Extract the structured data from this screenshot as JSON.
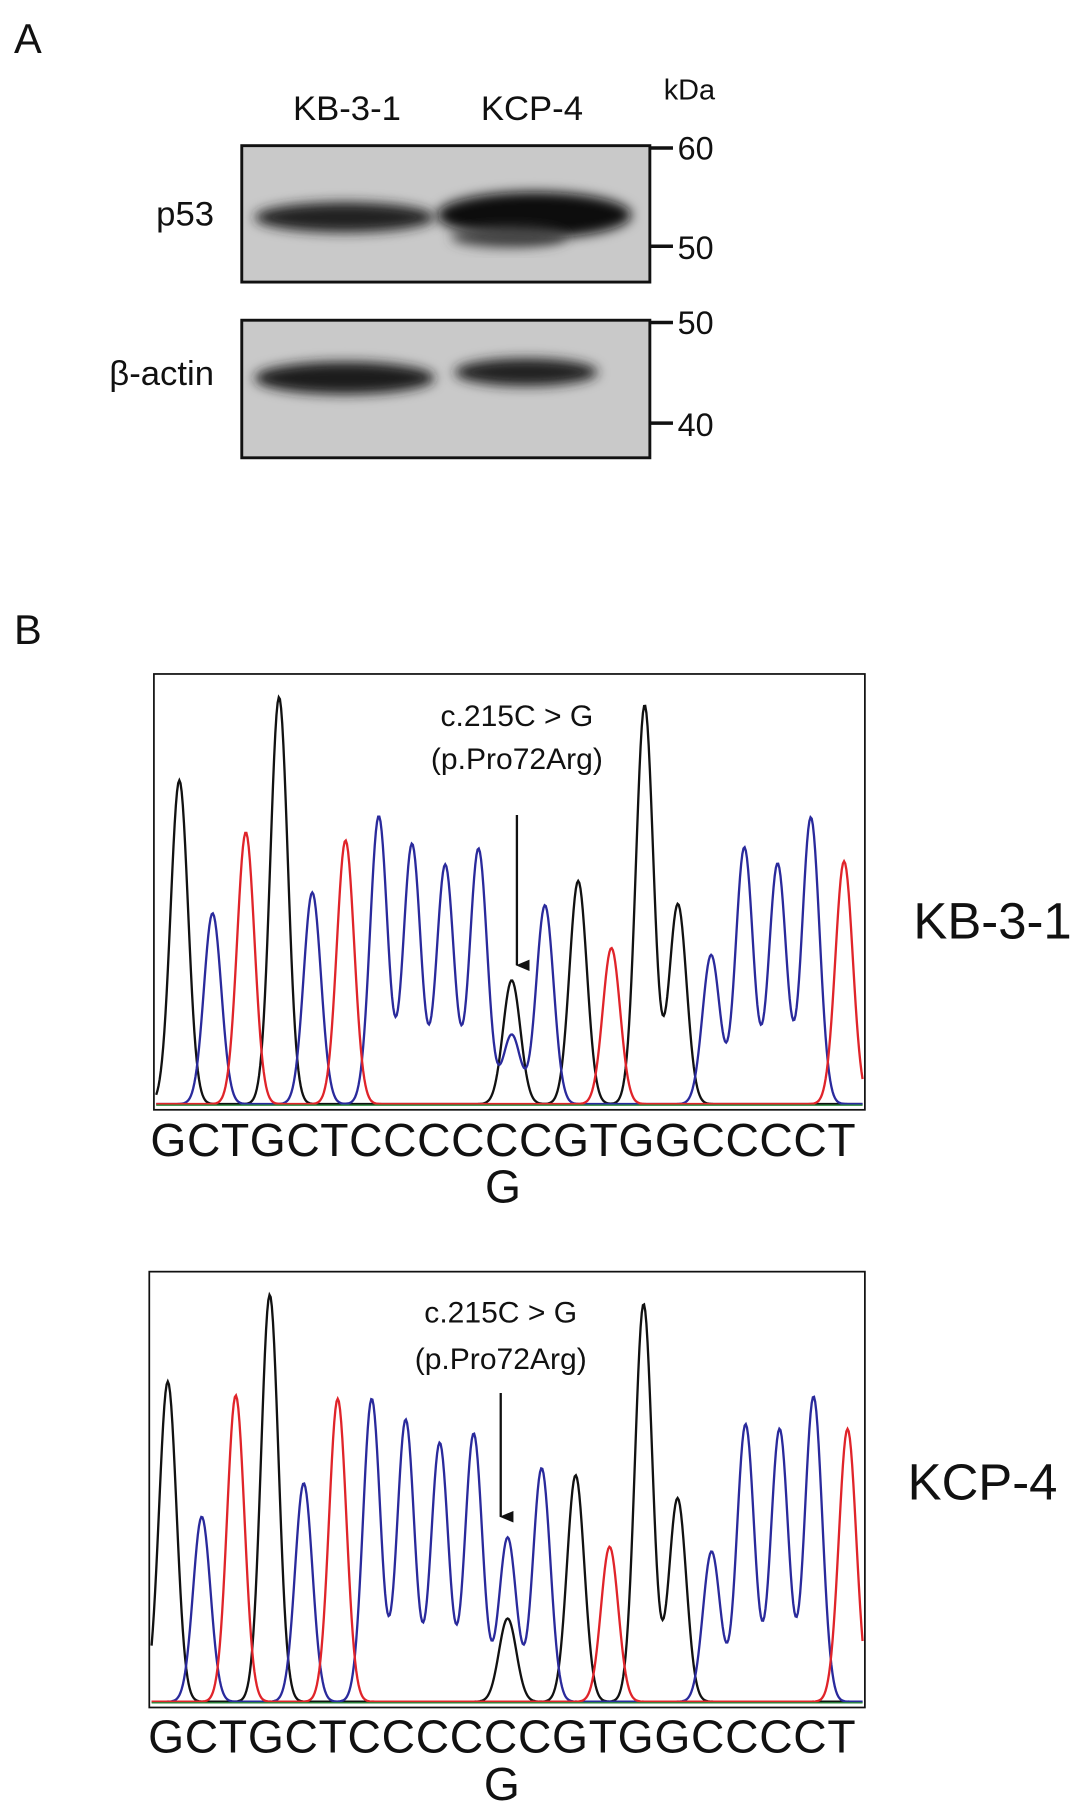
{
  "panel_a": {
    "label": "A",
    "lanes": [
      "KB-3-1",
      "KCP-4"
    ],
    "unit": "kDa",
    "blots": [
      {
        "label": "p53",
        "markers": [
          "60",
          "50"
        ]
      },
      {
        "label": "β-actin",
        "markers": [
          "50",
          "40"
        ]
      }
    ]
  },
  "panel_b": {
    "label": "B",
    "traces": [
      {
        "sample": "KB-3-1",
        "annotation": [
          "c.215C > G",
          "(p.Pro72Arg)"
        ],
        "sequence": "GCTGCTCCCCCCGTGGCCCCT",
        "variant": "G"
      },
      {
        "sample": "KCP-4",
        "annotation": [
          "c.215C > G",
          "(p.Pro72Arg)"
        ],
        "sequence": "GCTGCTCCCCCCGTGGCCCCT",
        "variant": "G"
      }
    ]
  }
}
